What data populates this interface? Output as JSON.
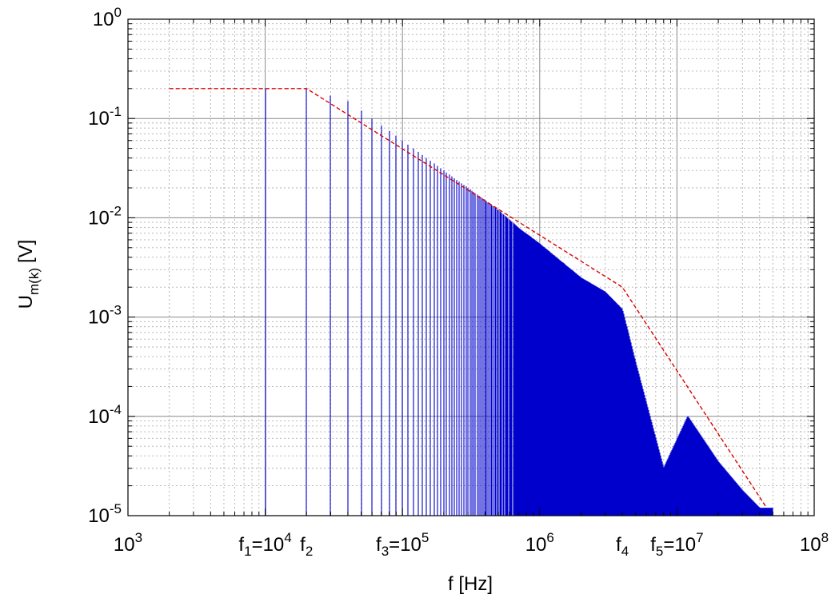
{
  "chart_data": {
    "type": "line",
    "xlabel": "f [Hz]",
    "ylabel_main": "U",
    "ylabel_sub": "m(k)",
    "ylabel_unit": "[V]",
    "x_scale": "log",
    "y_scale": "log",
    "xlim": [
      1000,
      100000000
    ],
    "ylim": [
      1e-05,
      1
    ],
    "grid": true,
    "x_ticks": [
      {
        "value": 1000,
        "base": "10",
        "exp": "3"
      },
      {
        "value": 1000000,
        "base": "10",
        "exp": "6"
      },
      {
        "value": 100000000,
        "base": "10",
        "exp": "8"
      }
    ],
    "x_marker_labels": [
      {
        "value": 10000,
        "parts": [
          "f",
          "1",
          "=10",
          "4"
        ]
      },
      {
        "value": 20000,
        "parts": [
          "f",
          "2",
          "",
          ""
        ]
      },
      {
        "value": 100000,
        "parts": [
          "f",
          "3",
          "=10",
          "5"
        ]
      },
      {
        "value": 4000000,
        "parts": [
          "f",
          "4",
          "",
          ""
        ]
      },
      {
        "value": 10000000,
        "parts": [
          "f",
          "5",
          "=10",
          "7"
        ]
      }
    ],
    "y_ticks": [
      {
        "value": 1,
        "base": "10",
        "exp": "0"
      },
      {
        "value": 0.1,
        "base": "10",
        "exp": "-1"
      },
      {
        "value": 0.01,
        "base": "10",
        "exp": "-2"
      },
      {
        "value": 0.001,
        "base": "10",
        "exp": "-3"
      },
      {
        "value": 0.0001,
        "base": "10",
        "exp": "-4"
      },
      {
        "value": 1e-05,
        "base": "10",
        "exp": "-5"
      }
    ],
    "series": [
      {
        "style": "impulses",
        "color": "#0000cc",
        "fundamental_hz": 10000,
        "x": [
          10000,
          20000,
          30000,
          40000,
          50000,
          60000,
          70000,
          80000,
          90000,
          100000,
          120000,
          150000,
          200000,
          300000,
          400000,
          500000,
          700000,
          1000000,
          2000000,
          3000000,
          4000000,
          5000000,
          8000000,
          12000000,
          20000000,
          30000000,
          40000000
        ],
        "y": [
          0.2,
          0.2,
          0.17,
          0.15,
          0.12,
          0.1,
          0.085,
          0.075,
          0.067,
          0.06,
          0.05,
          0.04,
          0.03,
          0.02,
          0.015,
          0.012,
          0.008,
          0.0055,
          0.0025,
          0.0018,
          0.0012,
          0.00035,
          3e-05,
          0.0001,
          3.5e-05,
          1.8e-05,
          1.2e-05
        ]
      },
      {
        "style": "dashed-envelope",
        "color": "#dd0000",
        "x": [
          2000,
          20000,
          4000000,
          45000000
        ],
        "y": [
          0.2,
          0.2,
          0.002,
          1.2e-05
        ]
      }
    ]
  }
}
